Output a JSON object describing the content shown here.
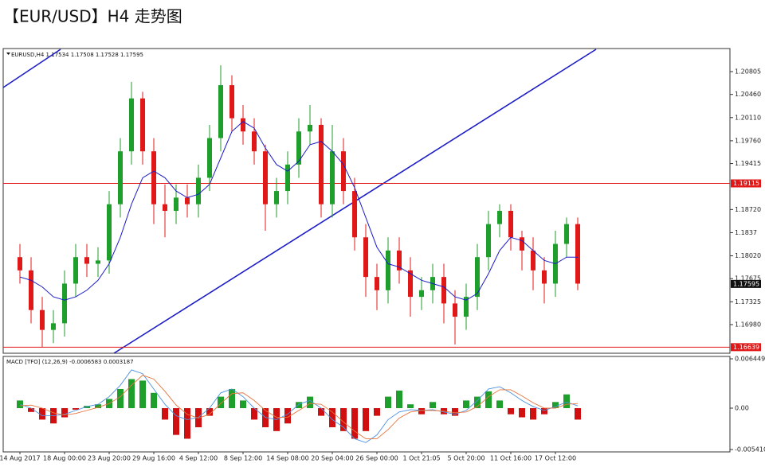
{
  "chart_data": [
    {
      "type": "candlestick",
      "title": "【EUR/USD】H4 走势图",
      "subtitle": "EURUSD,H4 1.17534 1.17508 1.17528 1.17595",
      "categories": [
        "14 Aug 2017",
        null,
        null,
        null,
        "18 Aug 00:00",
        null,
        null,
        null,
        "23 Aug 20:00",
        null,
        null,
        null,
        "29 Aug 16:00",
        null,
        null,
        null,
        "4 Sep 12:00",
        null,
        null,
        null,
        "8 Sep 12:00",
        null,
        null,
        null,
        "14 Sep 08:00",
        null,
        null,
        null,
        "20 Sep 04:00",
        null,
        null,
        null,
        "26 Sep 00:00",
        null,
        null,
        null,
        "1 Oct 21:05",
        null,
        null,
        null,
        "5 Oct 20:00",
        null,
        null,
        null,
        "11 Oct 16:00",
        null,
        null,
        null,
        "17 Oct 12:00",
        null,
        null
      ],
      "open": [
        1.18,
        1.178,
        1.172,
        1.169,
        1.17,
        1.176,
        1.18,
        1.179,
        1.1795,
        1.188,
        1.196,
        1.204,
        1.196,
        1.188,
        1.187,
        1.189,
        1.188,
        1.192,
        1.198,
        1.206,
        1.201,
        1.199,
        1.196,
        1.188,
        1.19,
        1.194,
        1.199,
        1.2,
        1.188,
        1.196,
        1.19,
        1.183,
        1.177,
        1.175,
        1.181,
        1.178,
        1.174,
        1.175,
        1.177,
        1.173,
        1.171,
        1.174,
        1.18,
        1.185,
        1.187,
        1.183,
        1.181,
        1.178,
        1.176,
        1.182,
        1.185
      ],
      "high": [
        1.182,
        1.18,
        1.174,
        1.172,
        1.178,
        1.182,
        1.182,
        1.1815,
        1.19,
        1.198,
        1.2065,
        1.205,
        1.198,
        1.191,
        1.191,
        1.191,
        1.194,
        1.2,
        1.209,
        1.2075,
        1.203,
        1.201,
        1.197,
        1.192,
        1.196,
        1.201,
        1.203,
        1.201,
        1.2,
        1.198,
        1.192,
        1.185,
        1.179,
        1.183,
        1.183,
        1.18,
        1.177,
        1.179,
        1.179,
        1.175,
        1.176,
        1.182,
        1.187,
        1.188,
        1.188,
        1.184,
        1.183,
        1.18,
        1.184,
        1.186,
        1.186
      ],
      "low": [
        1.176,
        1.17,
        1.1664,
        1.167,
        1.168,
        1.174,
        1.177,
        1.177,
        1.1775,
        1.186,
        1.194,
        1.194,
        1.185,
        1.183,
        1.185,
        1.186,
        1.186,
        1.19,
        1.196,
        1.199,
        1.197,
        1.194,
        1.184,
        1.186,
        1.188,
        1.192,
        1.197,
        1.186,
        1.186,
        1.188,
        1.181,
        1.174,
        1.172,
        1.173,
        1.176,
        1.171,
        1.172,
        1.173,
        1.17,
        1.1668,
        1.169,
        1.172,
        1.178,
        1.183,
        1.181,
        1.178,
        1.175,
        1.173,
        1.174,
        1.18,
        1.175
      ],
      "close": [
        1.178,
        1.172,
        1.169,
        1.17,
        1.176,
        1.18,
        1.179,
        1.1795,
        1.188,
        1.196,
        1.204,
        1.196,
        1.188,
        1.187,
        1.189,
        1.188,
        1.192,
        1.198,
        1.206,
        1.201,
        1.199,
        1.196,
        1.188,
        1.19,
        1.194,
        1.199,
        1.2,
        1.188,
        1.196,
        1.19,
        1.183,
        1.177,
        1.175,
        1.181,
        1.178,
        1.174,
        1.175,
        1.177,
        1.173,
        1.171,
        1.174,
        1.18,
        1.185,
        1.187,
        1.183,
        1.181,
        1.178,
        1.176,
        1.182,
        1.185,
        1.176
      ],
      "up_color": "#1e9e2a",
      "down_color": "#e01818",
      "overlay": {
        "color": "#1c1cc8",
        "values": [
          1.177,
          1.1765,
          1.1755,
          1.174,
          1.1735,
          1.174,
          1.175,
          1.1765,
          1.179,
          1.183,
          1.188,
          1.192,
          1.193,
          1.192,
          1.19,
          1.189,
          1.1895,
          1.191,
          1.195,
          1.199,
          1.2005,
          1.1995,
          1.1965,
          1.194,
          1.193,
          1.1945,
          1.197,
          1.1975,
          1.196,
          1.194,
          1.1905,
          1.186,
          1.1815,
          1.179,
          1.1785,
          1.1775,
          1.1765,
          1.176,
          1.1755,
          1.174,
          1.1735,
          1.1745,
          1.1775,
          1.181,
          1.183,
          1.1825,
          1.181,
          1.1795,
          1.179,
          1.18,
          1.18
        ]
      },
      "hlines": [
        {
          "value": 1.19115,
          "color": "#e01818"
        },
        {
          "value": 1.16639,
          "color": "#e01818"
        }
      ],
      "last_price": 1.17595,
      "ylim": [
        1.16559,
        1.21142
      ],
      "yticks": [
        1.20805,
        {
          "value": 1.2046,
          "label": "1.20460"
        },
        {
          "value": 1.2011,
          "label": "1.20110"
        },
        {
          "value": 1.1976,
          "label": "1.19760"
        },
        1.19415,
        {
          "value": 1.1872,
          "label": "1.18720"
        },
        1.1837,
        {
          "value": 1.1802,
          "label": "1.18020"
        },
        1.17675,
        1.17325,
        {
          "value": 1.1698,
          "label": "1.16980"
        }
      ]
    },
    {
      "type": "macd",
      "title": "MACD [TFO] (12,26,9) -0.0006583 0.0003187",
      "values": [
        0.001,
        -0.0005,
        -0.0015,
        -0.002,
        -0.0012,
        -0.0002,
        0.0003,
        0.0005,
        0.0012,
        0.0025,
        0.0038,
        0.0036,
        0.002,
        -0.0015,
        -0.0035,
        -0.004,
        -0.0025,
        -0.001,
        0.0015,
        0.0025,
        0.001,
        -0.0015,
        -0.0025,
        -0.003,
        -0.002,
        0.0008,
        0.0015,
        -0.001,
        -0.0025,
        -0.003,
        -0.004,
        -0.003,
        -0.001,
        0.0015,
        0.0023,
        0.0005,
        -0.0008,
        0.0008,
        -0.0008,
        -0.001,
        0.001,
        0.0015,
        0.0022,
        0.001,
        -0.0008,
        -0.0012,
        -0.0015,
        -0.0008,
        0.0008,
        0.0018,
        -0.0015
      ],
      "up_color": "#1e9e2a",
      "down_color": "#d01010",
      "lines": [
        {
          "color": "#4a90e2",
          "values": [
            0.0005,
            0,
            -0.001,
            -0.001,
            -0.0008,
            -0.0003,
            0.0002,
            0.0005,
            0.0015,
            0.003,
            0.005,
            0.0045,
            0.0025,
            0.0005,
            -0.001,
            -0.0015,
            -0.0012,
            0,
            0.002,
            0.0025,
            0.0015,
            0,
            -0.0012,
            -0.0015,
            -0.0008,
            0.0005,
            0.001,
            0,
            -0.0015,
            -0.0025,
            -0.004,
            -0.0045,
            -0.0035,
            -0.0015,
            -0.0005,
            -0.0002,
            -0.0003,
            -0.0002,
            -0.0005,
            -0.0008,
            -0.0003,
            0.001,
            0.0025,
            0.0028,
            0.002,
            0.001,
            0.0002,
            -0.0003,
            0.0002,
            0.0008,
            0.0003
          ]
        },
        {
          "color": "#e8743b",
          "values": [
            0.0003,
            0.0004,
            0,
            -0.0006,
            -0.0009,
            -0.0007,
            -0.0003,
            0.0001,
            0.0006,
            0.0015,
            0.003,
            0.0043,
            0.0038,
            0.0022,
            0.0004,
            -0.0008,
            -0.0013,
            -0.0008,
            0.0006,
            0.0019,
            0.002,
            0.001,
            -0.0003,
            -0.0012,
            -0.0012,
            -0.0003,
            0.0006,
            0.0005,
            -0.0005,
            -0.0018,
            -0.003,
            -0.004,
            -0.004,
            -0.0028,
            -0.0013,
            -0.0005,
            -0.0003,
            -0.0003,
            -0.0004,
            -0.0006,
            -0.0005,
            0.0002,
            0.0015,
            0.0024,
            0.0024,
            0.0016,
            0.0007,
            0,
            0,
            0.0005,
            0.0006
          ]
        }
      ],
      "ylim": [
        -0.00541,
        0.006449
      ],
      "yticks": [
        0.006449,
        {
          "value": 0,
          "label": "0.00"
        },
        {
          "value": -0.00541,
          "label": "-0.005410"
        }
      ]
    }
  ]
}
